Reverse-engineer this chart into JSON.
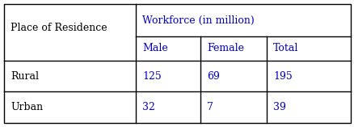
{
  "col1_header": "Place of Residence",
  "col2_header": "Workforce (in million)",
  "sub_headers": [
    "Male",
    "Female",
    "Total"
  ],
  "rows": [
    {
      "label": "Rural",
      "values": [
        "125",
        "69",
        "195"
      ]
    },
    {
      "label": "Urban",
      "values": [
        "32",
        "7",
        "39"
      ]
    }
  ],
  "header_text_color": "#0000cd",
  "label_text_color": "#000000",
  "value_text_color": "#0000cd",
  "border_color": "#000000",
  "bg_color": "#ffffff",
  "font_size": 9,
  "fig_width": 4.39,
  "fig_height": 1.57,
  "dpi": 100
}
